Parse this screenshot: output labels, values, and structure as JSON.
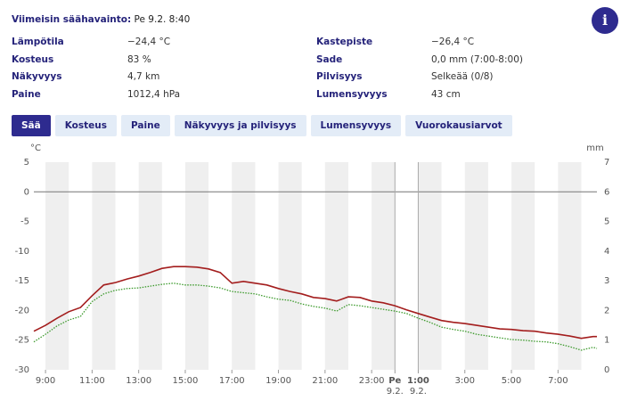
{
  "header": {
    "title": "Viimeisin säähavainto:",
    "time": "Pe 9.2. 8:40"
  },
  "info_button": "i",
  "observations": [
    {
      "label": "Lämpötila",
      "value": "−24,4 °C"
    },
    {
      "label": "Kosteus",
      "value": "83 %"
    },
    {
      "label": "Näkyvyys",
      "value": "4,7 km"
    },
    {
      "label": "Paine",
      "value": "1012,4 hPa"
    },
    {
      "label": "Kastepiste",
      "value": "−26,4 °C"
    },
    {
      "label": "Sade",
      "value": "0,0 mm (7:00-8:00)"
    },
    {
      "label": "Pilvisyys",
      "value": "Selkeää (0/8)"
    },
    {
      "label": "Lumensyvyys",
      "value": "43 cm"
    }
  ],
  "tabs": [
    "Sää",
    "Kosteus",
    "Paine",
    "Näkyvyys ja pilvisyys",
    "Lumensyvyys",
    "Vuorokausiarvot"
  ],
  "chart_data": {
    "type": "line",
    "y_label": "°C",
    "y2_label": "mm",
    "x": [
      8.5,
      9,
      9.5,
      10,
      10.5,
      11,
      11.5,
      12,
      12.5,
      13,
      13.5,
      14,
      14.5,
      15,
      15.5,
      16,
      16.5,
      17,
      17.5,
      18,
      18.5,
      19,
      19.5,
      20,
      20.5,
      21,
      21.5,
      22,
      22.5,
      23,
      23.5,
      24,
      24.5,
      25,
      25.5,
      26,
      26.5,
      27,
      27.5,
      28,
      28.5,
      29,
      29.5,
      30,
      30.5,
      31,
      31.5,
      32,
      32.5,
      32.67
    ],
    "series": [
      {
        "color": "#a31d1d",
        "style": "solid",
        "values": [
          -23.5,
          -22.5,
          -21.3,
          -20.2,
          -19.5,
          -17.5,
          -15.7,
          -15.3,
          -14.7,
          -14.2,
          -13.6,
          -12.9,
          -12.6,
          -12.6,
          -12.7,
          -13.0,
          -13.6,
          -15.4,
          -15.1,
          -15.4,
          -15.7,
          -16.3,
          -16.8,
          -17.2,
          -17.8,
          -18.0,
          -18.4,
          -17.7,
          -17.8,
          -18.4,
          -18.7,
          -19.2,
          -19.9,
          -20.5,
          -21.1,
          -21.7,
          -22.0,
          -22.2,
          -22.5,
          -22.8,
          -23.1,
          -23.2,
          -23.4,
          -23.5,
          -23.8,
          -24.0,
          -24.3,
          -24.7,
          -24.4,
          -24.4
        ]
      },
      {
        "color": "#3c9a2c",
        "style": "dotted",
        "values": [
          -25.3,
          -24.0,
          -22.6,
          -21.6,
          -21.0,
          -18.5,
          -17.2,
          -16.6,
          -16.3,
          -16.2,
          -15.9,
          -15.6,
          -15.4,
          -15.7,
          -15.7,
          -15.9,
          -16.2,
          -16.8,
          -17.0,
          -17.2,
          -17.7,
          -18.1,
          -18.3,
          -18.9,
          -19.3,
          -19.6,
          -20.1,
          -19.0,
          -19.2,
          -19.5,
          -19.8,
          -20.1,
          -20.5,
          -21.3,
          -22.0,
          -22.8,
          -23.2,
          -23.5,
          -24.0,
          -24.3,
          -24.6,
          -24.9,
          -25.0,
          -25.2,
          -25.3,
          -25.6,
          -26.1,
          -26.7,
          -26.2,
          -26.4
        ]
      }
    ],
    "xlim": [
      8.5,
      32.67
    ],
    "xticks": [
      {
        "value": 9,
        "label": "9:00"
      },
      {
        "value": 11,
        "label": "11:00"
      },
      {
        "value": 13,
        "label": "13:00"
      },
      {
        "value": 15,
        "label": "15:00"
      },
      {
        "value": 17,
        "label": "17:00"
      },
      {
        "value": 19,
        "label": "19:00"
      },
      {
        "value": 21,
        "label": "21:00"
      },
      {
        "value": 23,
        "label": "23:00"
      },
      {
        "value": 24,
        "label": "Pe"
      },
      {
        "value": 25,
        "label": "1:00"
      },
      {
        "value": 27,
        "label": "3:00"
      },
      {
        "value": 29,
        "label": "5:00"
      },
      {
        "value": 31,
        "label": "7:00"
      }
    ],
    "day_sublabel": "9.2.",
    "ylim": [
      -30,
      5
    ],
    "yticks": [
      5,
      0,
      -5,
      -10,
      -15,
      -20,
      -25,
      -30
    ],
    "y2lim": [
      0,
      7
    ],
    "y2ticks": [
      0,
      1,
      2,
      3,
      4,
      5,
      6,
      7
    ],
    "hour_bands": true
  }
}
